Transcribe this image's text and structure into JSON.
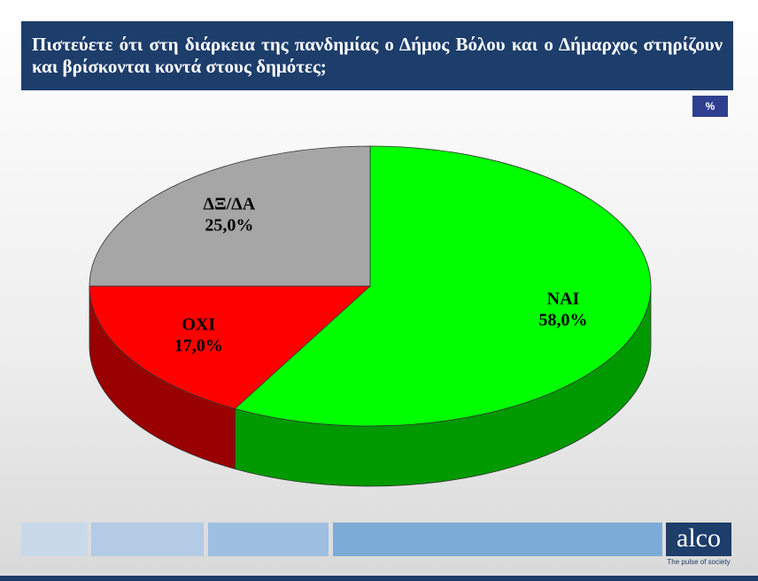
{
  "chart_data": {
    "type": "pie",
    "title": "Πιστεύετε ότι στη διάρκεια της πανδημίας ο Δήμος Βόλου και ο Δήμαρχος στηρίζουν και βρίσκονται κοντά στους δημότες;",
    "unit_label": "%",
    "categories": [
      "ΝΑΙ",
      "ΟΧΙ",
      "ΔΞ/ΔΑ"
    ],
    "values": [
      58,
      17,
      25
    ],
    "value_labels": [
      "58,0%",
      "17,0%",
      "25,0%"
    ],
    "colors": [
      "#00ff00",
      "#ff0000",
      "#a6a6a6"
    ]
  },
  "brand": {
    "name": "alco",
    "tagline": "The pulse of society"
  }
}
